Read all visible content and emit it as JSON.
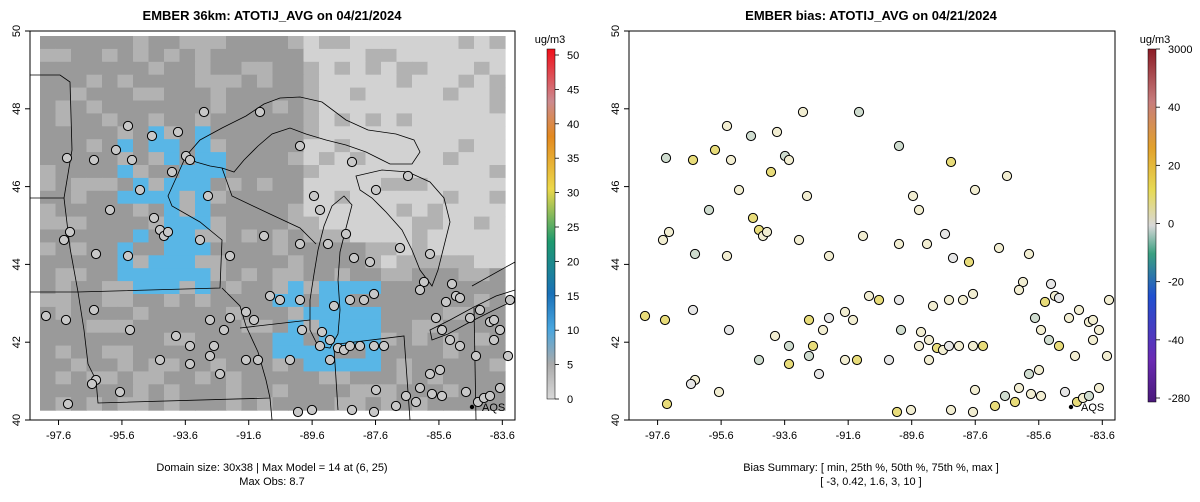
{
  "colors": {
    "grid_dark": "#9a9a9a",
    "grid_mid": "#b2b2b2",
    "grid_light": "#d2d2d2",
    "grid_blue": "#59b6e6",
    "obs_dot_fill": "#c8c8c8",
    "bias_dot_fill": "#f2eed2"
  },
  "panels": [
    {
      "title": "EMBER 36km: ATOTIJ_AVG on 04/21/2024",
      "lon_ticks": [
        "-97.6",
        "-95.6",
        "-93.6",
        "-91.6",
        "-89.6",
        "-87.6",
        "-85.6",
        "-83.6"
      ],
      "lat_ticks": [
        "40",
        "42",
        "44",
        "46",
        "48",
        "50"
      ],
      "footer_line1": "Domain size: 30x38 | Max Model = 14 at (6, 25)",
      "footer_line2": "Max Obs: 8.7",
      "site_label": "AQS",
      "colorbar": {
        "unit": "ug/m3",
        "labels": [
          "50",
          "45",
          "40",
          "35",
          "30",
          "25",
          "20",
          "15",
          "10",
          "5",
          "0"
        ]
      }
    },
    {
      "title": "EMBER bias: ATOTIJ_AVG on 04/21/2024",
      "lon_ticks": [
        "-97.6",
        "-95.6",
        "-93.6",
        "-91.6",
        "-89.6",
        "-87.6",
        "-85.6",
        "-83.6"
      ],
      "lat_ticks": [
        "40",
        "42",
        "44",
        "46",
        "48",
        "50"
      ],
      "footer_line1": "Bias Summary: [ min, 25th %, 50th %, 75th %, max ]",
      "footer_line2": "[ -3,   0.42,   1.6,   3,   10 ]",
      "site_label": "AQS",
      "colorbar": {
        "unit": "ug/m3",
        "labels": [
          "3000",
          "40",
          "20",
          "0",
          "-20",
          "-40",
          "-280"
        ]
      }
    }
  ],
  "chart_data": [
    {
      "type": "heatmap",
      "title": "EMBER 36km: ATOTIJ_AVG on 04/21/2024",
      "xlim": [
        -98.5,
        -83.2
      ],
      "ylim": [
        40,
        50
      ],
      "x_ticks": [
        -97.6,
        -95.6,
        -93.6,
        -91.6,
        -89.6,
        -87.6,
        -85.6,
        -83.6
      ],
      "y_ticks": [
        40,
        42,
        44,
        46,
        48,
        50
      ],
      "colorbar_range": [
        0,
        50
      ],
      "colorbar_unit": "ug/m3",
      "max_model": 14,
      "max_model_cell": [
        6,
        25
      ],
      "max_obs": 8.7,
      "domain_size": "30x38",
      "grid": false,
      "legend": "right colorbar"
    },
    {
      "type": "scatter",
      "title": "EMBER bias: ATOTIJ_AVG on 04/21/2024",
      "xlim": [
        -98.5,
        -83.2
      ],
      "ylim": [
        40,
        50
      ],
      "x_ticks": [
        -97.6,
        -95.6,
        -93.6,
        -91.6,
        -89.6,
        -87.6,
        -85.6,
        -83.6
      ],
      "y_ticks": [
        40,
        42,
        44,
        46,
        48,
        50
      ],
      "colorbar_ticks": [
        3000,
        40,
        20,
        0,
        -20,
        -40,
        -280
      ],
      "colorbar_unit": "ug/m3",
      "bias_summary": {
        "min": -3,
        "p25": 0.42,
        "p50": 1.6,
        "p75": 3,
        "max": 10
      },
      "grid": false,
      "legend": "right colorbar"
    }
  ]
}
